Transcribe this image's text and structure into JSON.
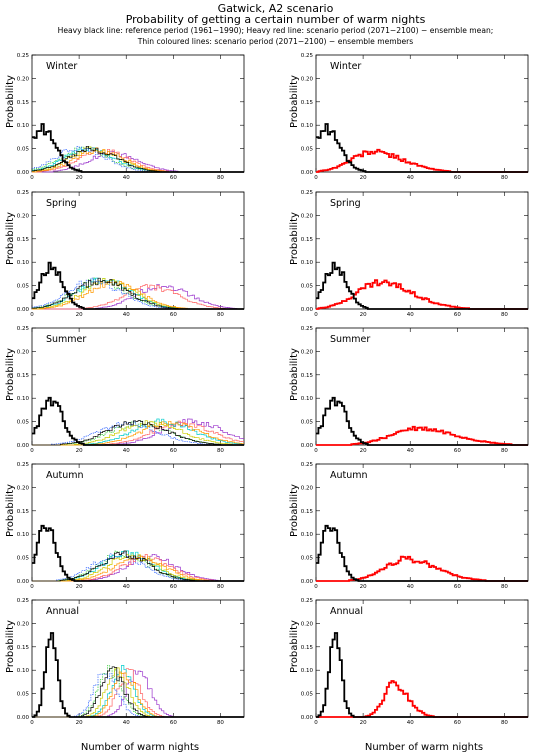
{
  "header": {
    "location": "Gatwick, A2 scenario",
    "title": "Probability of getting a certain number of warm nights",
    "legend_line1": "Heavy black line: reference period (1961−1990); Heavy red line: scenario period (2071−2100) − ensemble mean;",
    "legend_line2": "Thin coloured lines: scenario period (2071−2100) − ensemble members"
  },
  "axes": {
    "xlabel": "Number of warm nights",
    "ylabel": "Probability",
    "xlim": [
      0,
      90
    ],
    "ylim": [
      0,
      0.25
    ],
    "xticks": [
      "0",
      "20",
      "40",
      "60",
      "80"
    ],
    "yticks": [
      "0.00",
      "0.05",
      "0.10",
      "0.15",
      "0.20",
      "0.25"
    ]
  },
  "colors": {
    "reference": "#000000",
    "ensemble_mean": "#ff0000",
    "members": [
      "#9933cc",
      "#ff6666",
      "#33cc33",
      "#00cccc",
      "#cccc00",
      "#3366ff",
      "#ff9900",
      "#000000"
    ]
  },
  "chart_data": [
    {
      "type": "line",
      "season": "Winter",
      "reference": {
        "peak_x": 4,
        "peak_y": 0.092,
        "width": 6
      },
      "ensemble_mean": {
        "peak_x": 24,
        "peak_y": 0.043,
        "width": 13
      },
      "members": [
        {
          "peak_x": 34,
          "peak_y": 0.04
        },
        {
          "peak_x": 30,
          "peak_y": 0.045
        },
        {
          "peak_x": 22,
          "peak_y": 0.05
        },
        {
          "peak_x": 24,
          "peak_y": 0.05
        },
        {
          "peak_x": 26,
          "peak_y": 0.048
        },
        {
          "peak_x": 20,
          "peak_y": 0.052
        },
        {
          "peak_x": 28,
          "peak_y": 0.046
        },
        {
          "peak_x": 25,
          "peak_y": 0.049
        }
      ]
    },
    {
      "type": "line",
      "season": "Spring",
      "reference": {
        "peak_x": 8,
        "peak_y": 0.092,
        "width": 5
      },
      "ensemble_mean": {
        "peak_x": 27,
        "peak_y": 0.057,
        "width": 14
      },
      "members": [
        {
          "peak_x": 55,
          "peak_y": 0.05
        },
        {
          "peak_x": 50,
          "peak_y": 0.048
        },
        {
          "peak_x": 28,
          "peak_y": 0.06
        },
        {
          "peak_x": 30,
          "peak_y": 0.062
        },
        {
          "peak_x": 32,
          "peak_y": 0.058
        },
        {
          "peak_x": 26,
          "peak_y": 0.06
        },
        {
          "peak_x": 34,
          "peak_y": 0.056
        },
        {
          "peak_x": 29,
          "peak_y": 0.06
        }
      ]
    },
    {
      "type": "line",
      "season": "Summer",
      "reference": {
        "peak_x": 8,
        "peak_y": 0.097,
        "width": 5
      },
      "ensemble_mean": {
        "peak_x": 43,
        "peak_y": 0.035,
        "width": 16
      },
      "members": [
        {
          "peak_x": 68,
          "peak_y": 0.05
        },
        {
          "peak_x": 63,
          "peak_y": 0.045
        },
        {
          "peak_x": 45,
          "peak_y": 0.045
        },
        {
          "peak_x": 55,
          "peak_y": 0.05
        },
        {
          "peak_x": 50,
          "peak_y": 0.047
        },
        {
          "peak_x": 40,
          "peak_y": 0.045
        },
        {
          "peak_x": 58,
          "peak_y": 0.046
        },
        {
          "peak_x": 44,
          "peak_y": 0.048
        }
      ]
    },
    {
      "type": "line",
      "season": "Autumn",
      "reference": {
        "peak_x": 6,
        "peak_y": 0.12,
        "width": 4
      },
      "ensemble_mean": {
        "peak_x": 38,
        "peak_y": 0.047,
        "width": 13
      },
      "members": [
        {
          "peak_x": 50,
          "peak_y": 0.052
        },
        {
          "peak_x": 48,
          "peak_y": 0.05
        },
        {
          "peak_x": 38,
          "peak_y": 0.058
        },
        {
          "peak_x": 40,
          "peak_y": 0.06
        },
        {
          "peak_x": 42,
          "peak_y": 0.055
        },
        {
          "peak_x": 36,
          "peak_y": 0.058
        },
        {
          "peak_x": 45,
          "peak_y": 0.053
        },
        {
          "peak_x": 39,
          "peak_y": 0.057
        }
      ]
    },
    {
      "type": "line",
      "season": "Annual",
      "reference": {
        "peak_x": 8,
        "peak_y": 0.175,
        "width": 2.6
      },
      "ensemble_mean": {
        "peak_x": 33,
        "peak_y": 0.072,
        "width": 6
      },
      "members": [
        {
          "peak_x": 45,
          "peak_y": 0.1
        },
        {
          "peak_x": 41,
          "peak_y": 0.095
        },
        {
          "peak_x": 33,
          "peak_y": 0.1
        },
        {
          "peak_x": 38,
          "peak_y": 0.098
        },
        {
          "peak_x": 36,
          "peak_y": 0.097
        },
        {
          "peak_x": 31,
          "peak_y": 0.095
        },
        {
          "peak_x": 39,
          "peak_y": 0.096
        },
        {
          "peak_x": 34,
          "peak_y": 0.1
        }
      ]
    }
  ]
}
